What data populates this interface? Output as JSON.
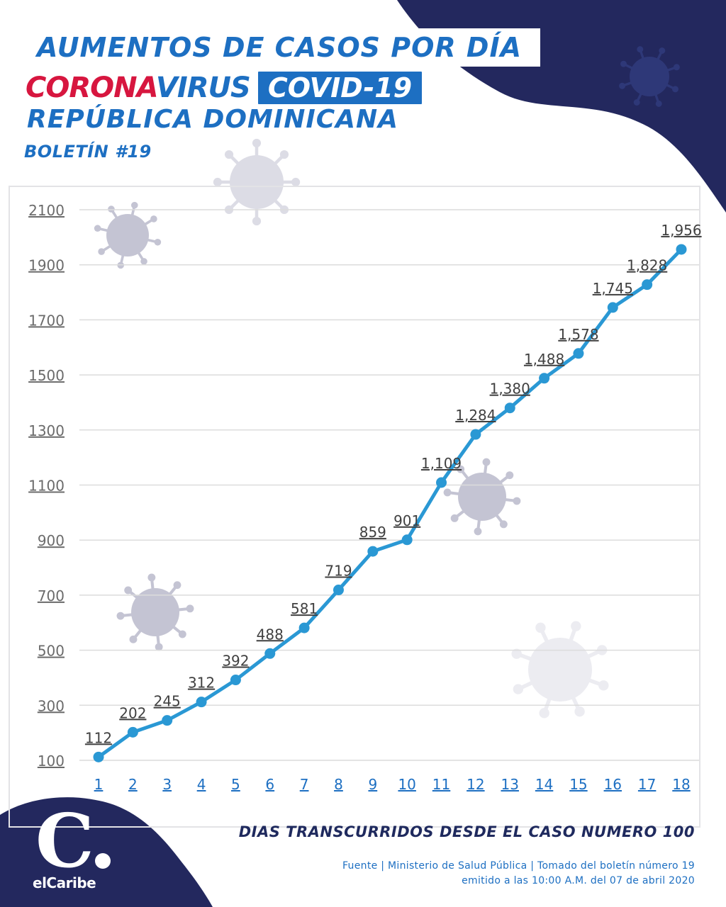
{
  "header": {
    "line1": "AUMENTOS DE CASOS POR DÍA",
    "line2_red": "CORONA",
    "line2_blue": "VIRUS",
    "line2_badge": "COVID-19",
    "line3": "REPÚBLICA DOMINICANA",
    "bulletin": "BOLETÍN #19"
  },
  "colors": {
    "navy": "#23285e",
    "blue": "#1d6fc2",
    "red": "#d7163f",
    "line": "#2a98d4",
    "virus": "#b9b9cc"
  },
  "chart_data": {
    "type": "line",
    "x": [
      1,
      2,
      3,
      4,
      5,
      6,
      7,
      8,
      9,
      10,
      11,
      12,
      13,
      14,
      15,
      16,
      17,
      18
    ],
    "series": [
      {
        "values": [
          112,
          202,
          245,
          312,
          392,
          488,
          581,
          719,
          859,
          901,
          1109,
          1284,
          1380,
          1488,
          1578,
          1745,
          1828,
          1956
        ],
        "labels": [
          "112",
          "202",
          "245",
          "312",
          "392",
          "488",
          "581",
          "719",
          "859",
          "901",
          "1,109",
          "1,284",
          "1,380",
          "1,488",
          "1,578",
          "1,745",
          "1,828",
          "1,956"
        ]
      }
    ],
    "yticks": [
      100,
      300,
      500,
      700,
      900,
      1100,
      1300,
      1500,
      1700,
      1900,
      2100
    ],
    "ylim": [
      100,
      2100
    ],
    "xlabel": "DIAS TRANSCURRIDOS DESDE EL CASO NUMERO 100",
    "ylabel": "",
    "grid": true
  },
  "footer": {
    "source_line1": "Fuente | Ministerio de Salud Pública | Tomado del boletín número 19",
    "source_line2": "emitido a las 10:00 A.M. del 07 de abril 2020",
    "logo_letter": "C",
    "logo_text": "elCaribe"
  }
}
